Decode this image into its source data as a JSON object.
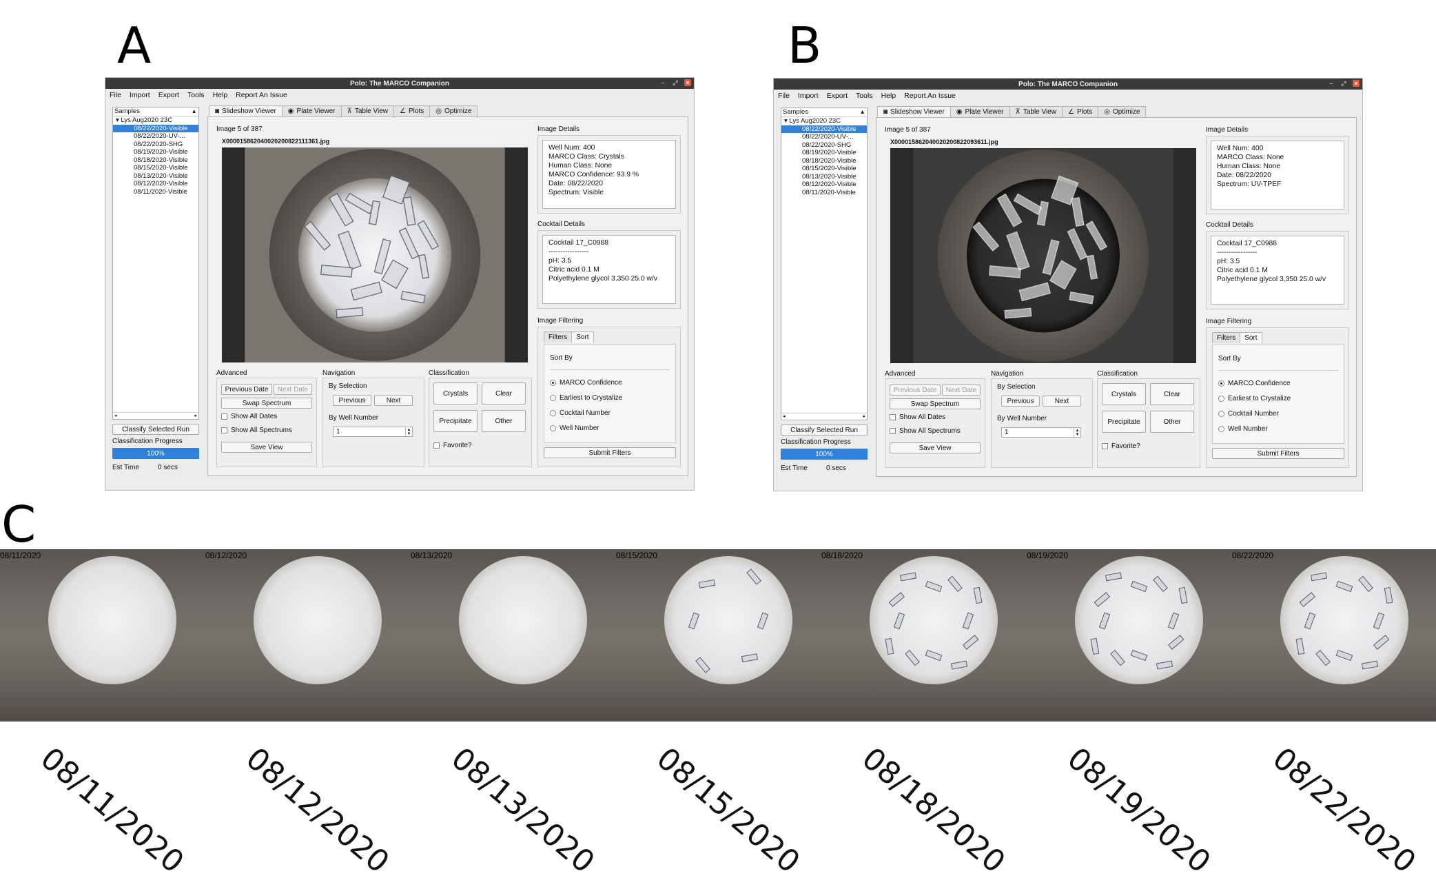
{
  "panels": [
    "A",
    "B",
    "C"
  ],
  "windows": [
    {
      "id": "A",
      "title": "Polo: The MARCO Companion",
      "menu": [
        "File",
        "Import",
        "Export",
        "Tools",
        "Help",
        "Report An Issue"
      ],
      "samples_header": "Samples",
      "run_name": "Lys Aug2020 23C",
      "runs": [
        "08/22/2020-Visible",
        "08/22/2020-UV-...",
        "08/22/2020-SHG",
        "08/19/2020-Visible",
        "08/18/2020-Visible",
        "08/15/2020-Visible",
        "08/13/2020-Visible",
        "08/12/2020-Visible",
        "08/11/2020-Visible"
      ],
      "classify_button": "Classify Selected Run",
      "progress_label": "Classification Progress",
      "progress_text": "100%",
      "progress_fraction": 1.0,
      "est_time_label": "Est Time",
      "est_time_value": "0 secs",
      "tabs": [
        "Slideshow Viewer",
        "Plate Viewer",
        "Table View",
        "Plots",
        "Optimize"
      ],
      "image_counter": "Image 5 of 387",
      "filename": "X000015862040020200822111361.jpg",
      "image_type": "visible",
      "image_details_label": "Image Details",
      "image_details": [
        "Well Num: 400",
        "MARCO Class: Crystals",
        "Human Class: None",
        "MARCO Confidence: 93.9 %",
        "Date: 08/22/2020",
        "Spectrum: Visible"
      ],
      "cocktail_label": "Cocktail Details",
      "cocktail": [
        "Cocktail 17_C0988",
        "-----------------",
        "pH: 3.5",
        "Citric acid  0.1 M",
        "Polyethylene glycol 3,350 25.0 w/v"
      ],
      "filtering_label": "Image Filtering",
      "filter_tabs": [
        "Filters",
        "Sort"
      ],
      "sort_by_label": "Sort By",
      "sort_options": [
        "MARCO Confidence",
        "Earliest to Crystalize",
        "Cocktail Number",
        "Well Number"
      ],
      "submit_filters": "Submit Filters",
      "advanced_label": "Advanced",
      "previous_date": "Previous Date",
      "next_date": "Next Date",
      "swap_spectrum": "Swap Spectrum",
      "show_all_dates": "Show All Dates",
      "show_all_spectrums": "Show All Spectrums",
      "save_view": "Save View",
      "navigation_label": "Navigation",
      "by_selection": "By Selection",
      "previous": "Previous",
      "next": "Next",
      "by_well_number": "By Well Number",
      "well_number_value": "1",
      "classification_label": "Classification",
      "crystals": "Crystals",
      "clear": "Clear",
      "precipitate": "Precipitate",
      "other": "Other",
      "favorite": "Favorite?",
      "previous_date_enabled": true
    },
    {
      "id": "B",
      "title": "Polo: The MARCO Companion",
      "menu": [
        "File",
        "Import",
        "Export",
        "Tools",
        "Help",
        "Report An Issue"
      ],
      "samples_header": "Samples",
      "run_name": "Lys Aug2020 23C",
      "runs": [
        "08/22/2020-Visible",
        "08/22/2020-UV-...",
        "08/22/2020-SHG",
        "08/19/2020-Visible",
        "08/18/2020-Visible",
        "08/15/2020-Visible",
        "08/13/2020-Visible",
        "08/12/2020-Visible",
        "08/11/2020-Visible"
      ],
      "classify_button": "Classify Selected Run",
      "progress_label": "Classification Progress",
      "progress_text": "100%",
      "progress_fraction": 1.0,
      "est_time_label": "Est Time",
      "est_time_value": "0 secs",
      "tabs": [
        "Slideshow Viewer",
        "Plate Viewer",
        "Table View",
        "Plots",
        "Optimize"
      ],
      "image_counter": "Image 5 of 387",
      "filename": "X000015862040020200822093611.jpg",
      "image_type": "uv",
      "image_details_label": "Image Details",
      "image_details": [
        "Well Num: 400",
        "MARCO Class: None",
        "Human Class: None",
        "Date: 08/22/2020",
        "Spectrum: UV-TPEF"
      ],
      "cocktail_label": "Cocktail Details",
      "cocktail": [
        "Cocktail 17_C0988",
        "-----------------",
        "pH: 3.5",
        "Citric acid  0.1 M",
        "Polyethylene glycol 3,350 25.0 w/v"
      ],
      "filtering_label": "Image Filtering",
      "filter_tabs": [
        "Filters",
        "Sort"
      ],
      "sort_by_label": "Sort By",
      "sort_options": [
        "MARCO Confidence",
        "Earliest to Crystalize",
        "Cocktail Number",
        "Well Number"
      ],
      "submit_filters": "Submit Filters",
      "advanced_label": "Advanced",
      "previous_date": "Previous Date",
      "next_date": "Next Date",
      "swap_spectrum": "Swap Spectrum",
      "show_all_dates": "Show All Dates",
      "show_all_spectrums": "Show All Spectrums",
      "save_view": "Save View",
      "navigation_label": "Navigation",
      "by_selection": "By Selection",
      "previous": "Previous",
      "next": "Next",
      "by_well_number": "By Well Number",
      "well_number_value": "1",
      "classification_label": "Classification",
      "crystals": "Crystals",
      "clear": "Clear",
      "precipitate": "Precipitate",
      "other": "Other",
      "favorite": "Favorite?",
      "previous_date_enabled": false
    }
  ],
  "timeline": {
    "dates": [
      "08/11/2020",
      "08/12/2020",
      "08/13/2020",
      "08/15/2020",
      "08/18/2020",
      "08/19/2020",
      "08/22/2020"
    ]
  },
  "colors": {
    "accent": "#2f82d8",
    "titlebar": "#3a3a3a",
    "close": "#e25a3a"
  }
}
